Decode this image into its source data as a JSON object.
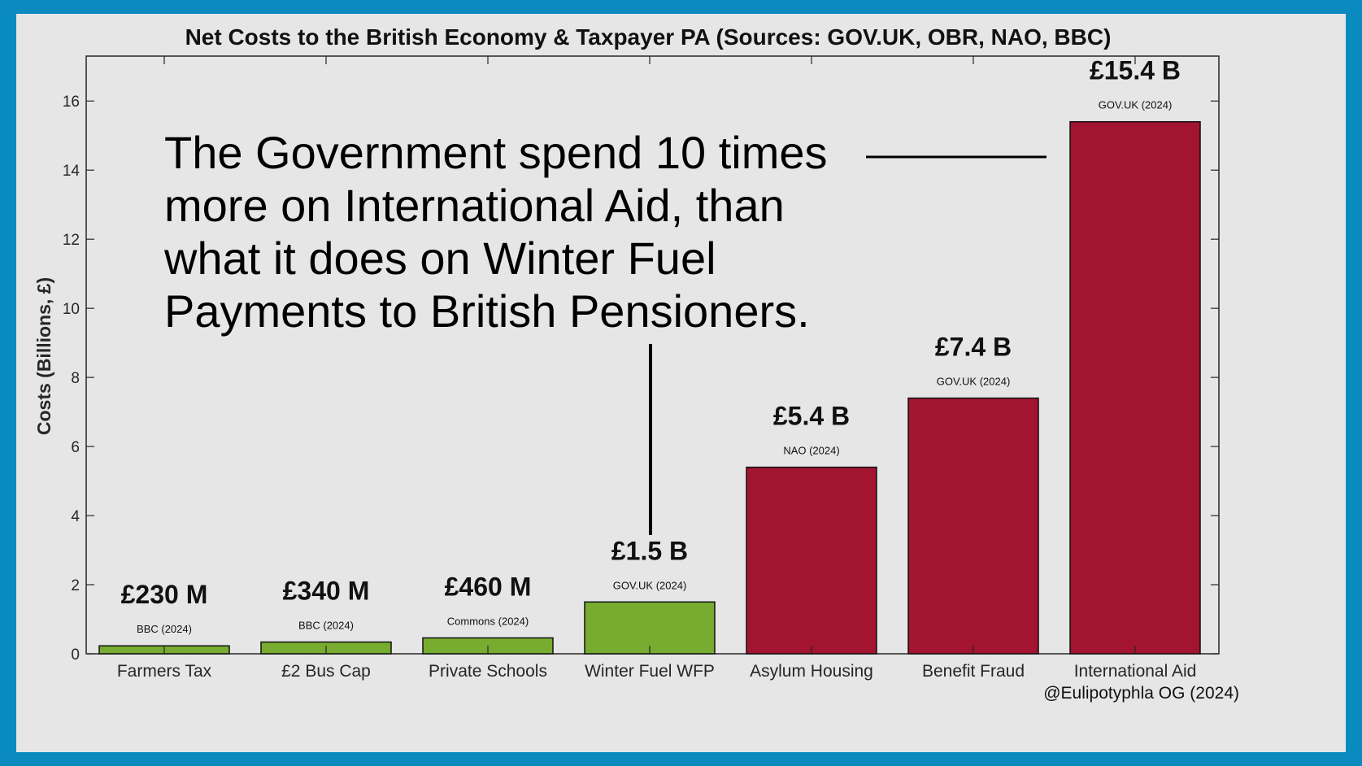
{
  "chart_data": {
    "type": "bar",
    "title": "Net Costs to the British Economy & Taxpayer PA (Sources: GOV.UK, OBR, NAO, BBC)",
    "ylabel": "Costs (Billions, £)",
    "xlabel": "",
    "ylim": [
      0,
      17.3
    ],
    "yticks": [
      0,
      2,
      4,
      6,
      8,
      10,
      12,
      14,
      16
    ],
    "grid": false,
    "categories": [
      "Farmers Tax",
      "£2 Bus Cap",
      "Private Schools",
      "Winter Fuel WFP",
      "Asylum Housing",
      "Benefit Fraud",
      "International Aid"
    ],
    "values": [
      0.23,
      0.34,
      0.46,
      1.5,
      5.4,
      7.4,
      15.4
    ],
    "value_labels": [
      "£230 M",
      "£340 M",
      "£460 M",
      "£1.5 B",
      "£5.4 B",
      "£7.4 B",
      "£15.4 B"
    ],
    "source_labels": [
      "BBC (2024)",
      "BBC (2024)",
      "Commons (2024)",
      "GOV.UK (2024)",
      "NAO (2024)",
      "GOV.UK (2024)",
      "GOV.UK (2024)"
    ],
    "bar_colors": [
      "#77ac30",
      "#77ac30",
      "#77ac30",
      "#77ac30",
      "#a2142f",
      "#a2142f",
      "#a2142f"
    ],
    "annotation": {
      "lines": [
        "The Government spend 10 times",
        "more on International Aid, than",
        "what it does on Winter Fuel",
        "Payments to British Pensioners."
      ]
    },
    "credit": "@Eulipotyphla OG (2024)"
  },
  "colors": {
    "border": "#0a8bbf",
    "background": "#e6e6e6",
    "green": "#77ac30",
    "red": "#a2142f"
  }
}
